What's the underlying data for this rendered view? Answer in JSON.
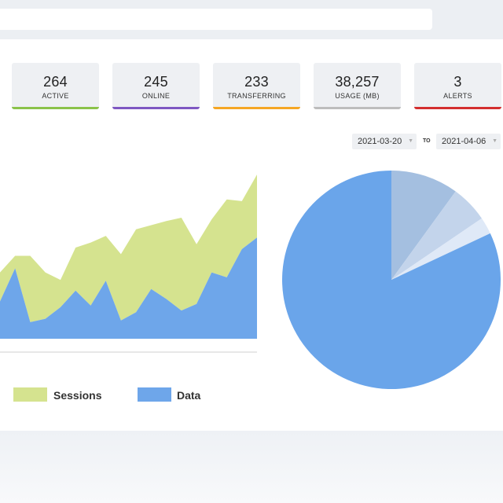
{
  "stats": [
    {
      "value": "264",
      "label": "ACTIVE",
      "color": "#8bc34a"
    },
    {
      "value": "245",
      "label": "ONLINE",
      "color": "#7e57c2"
    },
    {
      "value": "233",
      "label": "TRANSFERRING",
      "color": "#f5a623"
    },
    {
      "value": "38,257",
      "label": "USAGE (MB)",
      "color": "#bdbdbd"
    },
    {
      "value": "3",
      "label": "ALERTS",
      "color": "#d32f2f"
    }
  ],
  "date_range": {
    "from": "2021-03-20",
    "to_label": "TO",
    "to": "2021-04-06"
  },
  "legend": {
    "sessions": "Sessions",
    "data": "Data"
  },
  "colors": {
    "sessions": "#d5e38f",
    "data": "#6ea6ea",
    "pie_main": "#6aa5ea",
    "pie_2": "#a4bfe0",
    "pie_3": "#c3d4eb",
    "pie_4": "#dfe9f7"
  },
  "chart_data": [
    {
      "type": "area",
      "stacked": true,
      "x": [
        0,
        1,
        2,
        3,
        4,
        5,
        6,
        7,
        8,
        9,
        10,
        11,
        12,
        13,
        14,
        15,
        16,
        17
      ],
      "series": [
        {
          "name": "Data",
          "values": [
            45,
            85,
            20,
            24,
            38,
            58,
            40,
            70,
            22,
            32,
            60,
            48,
            34,
            42,
            80,
            74,
            108,
            122
          ]
        },
        {
          "name": "Sessions",
          "values": [
            35,
            15,
            80,
            56,
            33,
            52,
            76,
            54,
            80,
            100,
            77,
            94,
            112,
            72,
            64,
            94,
            58,
            76
          ]
        }
      ],
      "ylim": [
        0,
        200
      ],
      "legend_position": "bottom"
    },
    {
      "type": "pie",
      "values": [
        82,
        10,
        5.5,
        2.5
      ]
    }
  ]
}
